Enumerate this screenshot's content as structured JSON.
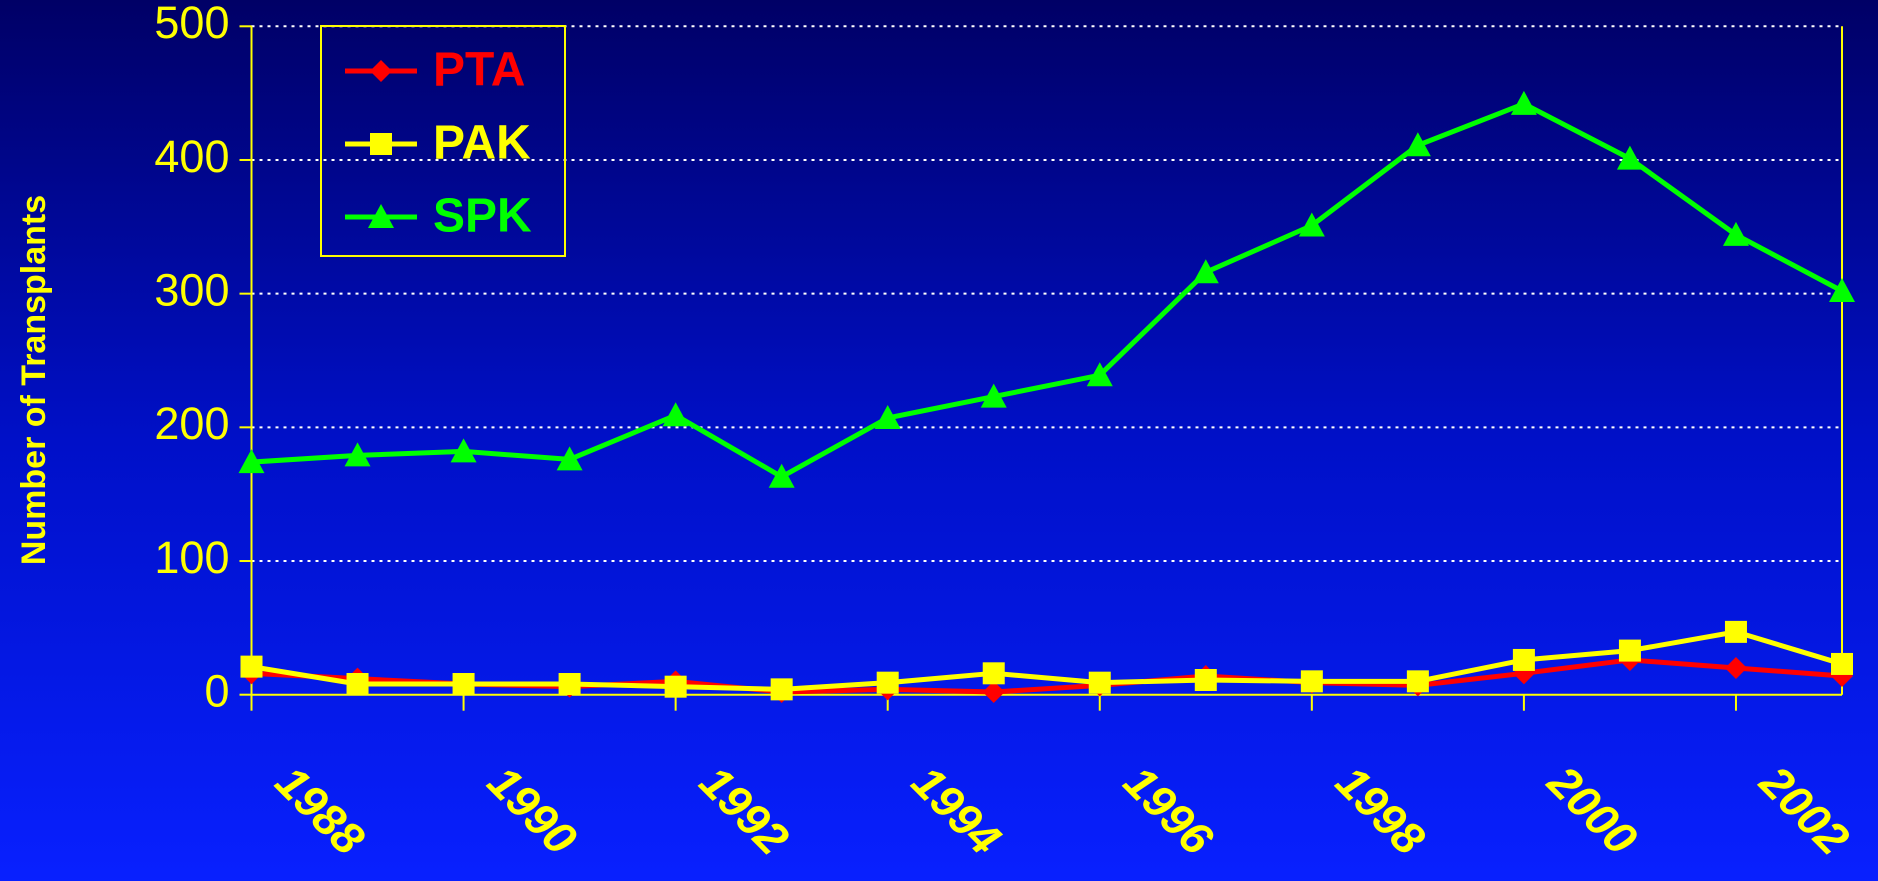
{
  "chart_data": {
    "type": "line",
    "y_label": "Number of Transplants",
    "categories": [
      "1988",
      null,
      "1990",
      null,
      "1992",
      null,
      "1994",
      null,
      "1996",
      null,
      "1998",
      null,
      "2000",
      null,
      "2002",
      null
    ],
    "series": [
      {
        "name": "PTA",
        "color": "#ff0000",
        "marker": "diamond",
        "values": [
          16,
          12,
          8,
          6,
          10,
          2,
          4,
          2,
          7,
          14,
          9,
          7,
          16,
          26,
          20,
          14
        ]
      },
      {
        "name": "PAK",
        "color": "#ffff00",
        "marker": "square",
        "values": [
          21,
          8,
          8,
          8,
          6,
          4,
          9,
          16,
          9,
          11,
          10,
          10,
          26,
          33,
          47,
          23
        ]
      },
      {
        "name": "SPK",
        "color": "#00ff00",
        "marker": "triangle",
        "values": [
          174,
          179,
          182,
          176,
          209,
          163,
          207,
          223,
          239,
          316,
          351,
          411,
          442,
          401,
          344,
          302
        ]
      }
    ],
    "ylim": [
      0,
      500
    ],
    "yticks": [
      0,
      100,
      200,
      300,
      400,
      500
    ],
    "grid": true,
    "legend": "upper left"
  }
}
